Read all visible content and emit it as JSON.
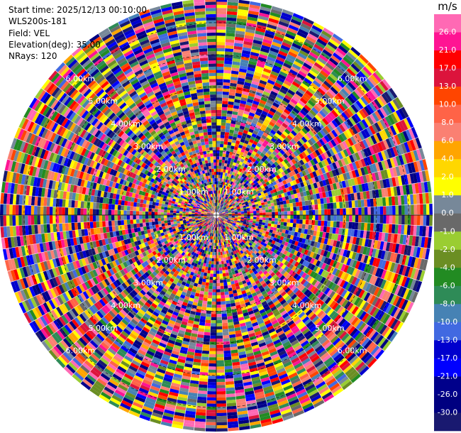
{
  "info": {
    "start_time": "Start time: 2025/12/13 00:10:00",
    "instrument": "WLS200s-181",
    "field": "Field: VEL",
    "elevation": "Elevation(deg): 35.00",
    "nrays": "NRays: 120"
  },
  "colorbar": {
    "unit": "m/s",
    "ticks": [
      "26.0",
      "21.0",
      "17.0",
      "13.0",
      "10.0",
      "8.0",
      "6.0",
      "4.0",
      "2.0",
      "1.0",
      "0.0",
      "-1.0",
      "-2.0",
      "-4.0",
      "-6.0",
      "-8.0",
      "-10.0",
      "-13.0",
      "-17.0",
      "-21.0",
      "-26.0",
      "-30.0"
    ],
    "colors": [
      "#ff69b4",
      "#ff1493",
      "#ff0000",
      "#dc143c",
      "#ff4500",
      "#ff6347",
      "#fa8072",
      "#ffa500",
      "#ffd700",
      "#ffff00",
      "#778899",
      "#696969",
      "#9acd32",
      "#6b8e23",
      "#228b22",
      "#2e8b57",
      "#4682b4",
      "#4169e1",
      "#0000cd",
      "#0000ff",
      "#00008b",
      "#000080",
      "#191970"
    ]
  },
  "chart_data": {
    "type": "heatmap",
    "projection": "polar (PPI)",
    "field": "VEL",
    "units": "m/s",
    "n_rays": 120,
    "elevation_deg": 35.0,
    "range_rings_km": [
      1.0,
      2.0,
      3.0,
      4.0,
      5.0,
      6.0
    ],
    "ring_labels": [
      "1.00km",
      "2.00km",
      "3.00km",
      "4.00km",
      "5.00km",
      "6.00km"
    ],
    "color_levels": [
      -30,
      -26,
      -21,
      -17,
      -13,
      -10,
      -8,
      -6,
      -4,
      -2,
      -1,
      0,
      1,
      2,
      4,
      6,
      8,
      10,
      13,
      17,
      21,
      26
    ],
    "value_range": [
      -30,
      26
    ],
    "note_values": "noise-dominated velocity field; gate values span full colour range"
  }
}
